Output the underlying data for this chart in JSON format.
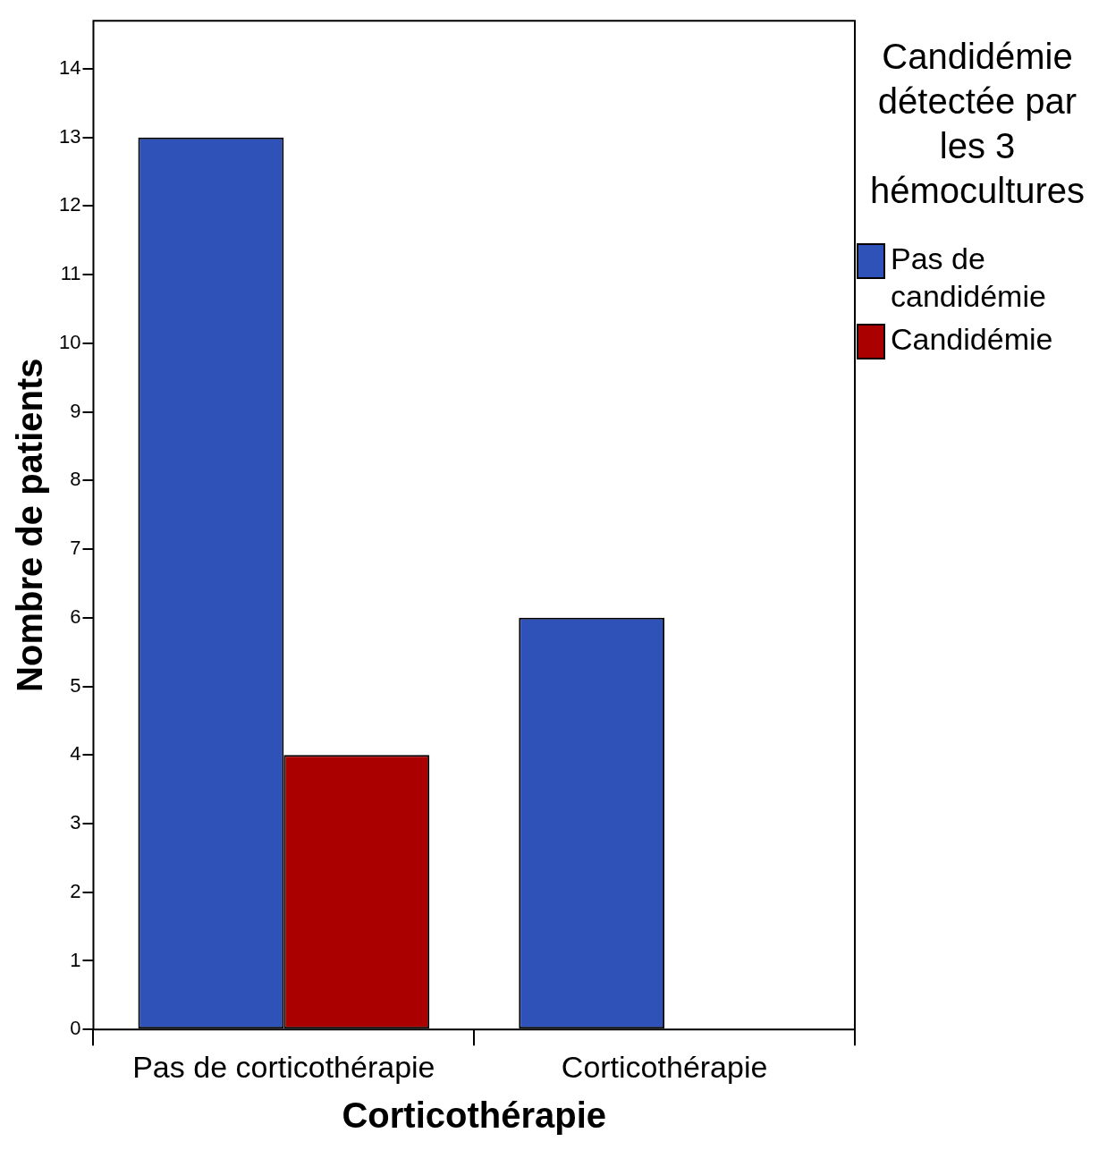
{
  "chart_data": {
    "type": "bar",
    "xlabel": "Corticothérapie",
    "ylabel": "Nombre de patients",
    "legend_title": "Candidémie détectée par les 3 hémocultures",
    "categories": [
      "Pas de corticothérapie",
      "Corticothérapie"
    ],
    "series": [
      {
        "name": "Pas de candidémie",
        "color": "#2f52b9",
        "values": [
          13,
          6
        ]
      },
      {
        "name": "Candidémie",
        "color": "#aa0000",
        "values": [
          4,
          0
        ]
      }
    ],
    "ylim": [
      0,
      14.7
    ],
    "yticks": [
      0,
      1,
      2,
      3,
      4,
      5,
      6,
      7,
      8,
      9,
      10,
      11,
      12,
      13,
      14
    ],
    "grid": false,
    "legend": "right"
  }
}
